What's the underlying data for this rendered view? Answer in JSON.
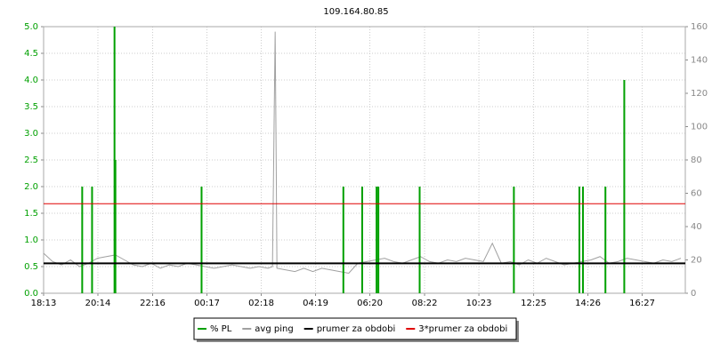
{
  "chart_data": {
    "type": "line",
    "title": "109.164.80.85",
    "xlim": [
      0,
      1430
    ],
    "xticks": [
      {
        "value": 0,
        "label": "18:13"
      },
      {
        "value": 121,
        "label": "20:14"
      },
      {
        "value": 243,
        "label": "22:16"
      },
      {
        "value": 364,
        "label": "00:17"
      },
      {
        "value": 485,
        "label": "02:18"
      },
      {
        "value": 606,
        "label": "04:19"
      },
      {
        "value": 727,
        "label": "06:20"
      },
      {
        "value": 849,
        "label": "08:22"
      },
      {
        "value": 970,
        "label": "10:23"
      },
      {
        "value": 1092,
        "label": "12:25"
      },
      {
        "value": 1213,
        "label": "14:26"
      },
      {
        "value": 1334,
        "label": "16:27"
      }
    ],
    "ylim": [
      0,
      5
    ],
    "yticks": [
      {
        "value": 0,
        "label": "0.0"
      },
      0.5,
      {
        "value": 1,
        "label": "1.0"
      },
      1.5,
      {
        "value": 2,
        "label": "2.0"
      },
      2.5,
      {
        "value": 3,
        "label": "3.0"
      },
      3.5,
      {
        "value": 4,
        "label": "4.0"
      },
      4.5,
      {
        "value": 5,
        "label": "5.0"
      }
    ],
    "y2lim": [
      0,
      160
    ],
    "y2ticks": [
      0,
      20,
      40,
      60,
      80,
      100,
      120,
      140,
      160
    ],
    "grid": true,
    "legend": "bottom",
    "series": [
      {
        "name": "% PL",
        "color": "#00a000",
        "type": "bar",
        "x": [
          86,
          108,
          158,
          160,
          352,
          668,
          710,
          742,
          746,
          838,
          1048,
          1194,
          1202,
          1252,
          1294
        ],
        "values": [
          2,
          2,
          5,
          2.5,
          2,
          2,
          2,
          2,
          2,
          2,
          2,
          2,
          2,
          2,
          4
        ]
      },
      {
        "name": "avg ping",
        "color": "#a0a0a0",
        "type": "line",
        "axis": "y2",
        "x": [
          0,
          20,
          40,
          60,
          80,
          100,
          120,
          140,
          160,
          180,
          200,
          220,
          240,
          260,
          280,
          300,
          320,
          340,
          360,
          380,
          400,
          420,
          440,
          460,
          480,
          500,
          510,
          516,
          518,
          520,
          540,
          560,
          580,
          600,
          620,
          640,
          660,
          680,
          700,
          720,
          740,
          760,
          780,
          800,
          820,
          840,
          860,
          880,
          900,
          920,
          940,
          960,
          980,
          1000,
          1020,
          1040,
          1060,
          1080,
          1100,
          1120,
          1140,
          1160,
          1180,
          1200,
          1220,
          1240,
          1260,
          1280,
          1300,
          1320,
          1340,
          1360,
          1380,
          1400,
          1420
        ],
        "values": [
          24,
          19,
          17,
          20,
          16,
          18,
          21,
          22,
          23,
          20,
          17,
          16,
          18,
          15,
          17,
          16,
          18,
          17,
          16,
          15,
          16,
          17,
          16,
          15,
          16,
          15,
          16,
          157,
          90,
          15,
          14,
          13,
          15,
          13,
          15,
          14,
          13,
          12,
          18,
          19,
          20,
          21,
          19,
          18,
          20,
          22,
          19,
          18,
          20,
          19,
          21,
          20,
          19,
          30,
          18,
          19,
          17,
          20,
          18,
          21,
          19,
          17,
          18,
          19,
          20,
          22,
          18,
          19,
          21,
          20,
          19,
          18,
          20,
          19,
          21
        ]
      },
      {
        "name": "prumer za obdobi",
        "color": "#000000",
        "type": "hline",
        "value": 0.56
      },
      {
        "name": "3*prumer za obdobi",
        "color": "#e00000",
        "type": "hline",
        "value": 1.68
      }
    ]
  }
}
